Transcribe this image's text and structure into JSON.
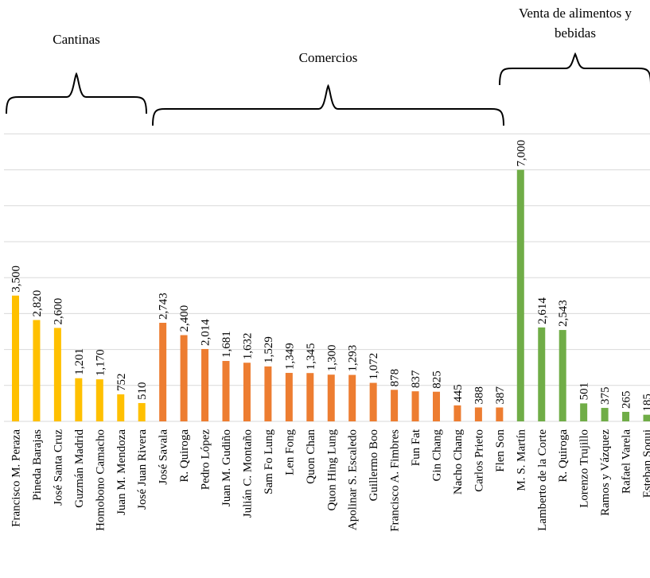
{
  "chart_data": {
    "type": "bar",
    "title": "",
    "xlabel": "",
    "ylabel": "",
    "ylim": [
      0,
      8000
    ],
    "grid": true,
    "colors": {
      "cantinas": "#FFC000",
      "comercios": "#ED7D31",
      "alimentos": "#70AD47",
      "grid": "#d9d9d9"
    },
    "groups": [
      {
        "key": "cantinas",
        "label_lines": [
          "Cantinas"
        ],
        "categories": [
          "Francisco M. Peraza",
          "Pineda Barajas",
          "José Santa Cruz",
          "Guzmán Madrid",
          "Homobono Camacho",
          "Juan M. Mendoza",
          "José Juan Rivera"
        ],
        "values": [
          3500,
          2820,
          2600,
          1201,
          1170,
          752,
          510
        ],
        "value_labels": [
          "3,500",
          "2,820",
          "2,600",
          "1,201",
          "1,170",
          "752",
          "510"
        ]
      },
      {
        "key": "comercios",
        "label_lines": [
          "Comercios"
        ],
        "categories": [
          "José Savala",
          "R. Quiroga",
          "Pedro López",
          "Juan M. Gudiño",
          "Julián C. Montaño",
          "Sam Fo Lung",
          "Len Fong",
          "Quon Chan",
          "Quon Hing Lung",
          "Apolinar S. Escaledo",
          "Guillermo Boo",
          "Francisco A. Fimbres",
          "Fun Fat",
          "Gin Chang",
          "Nacho Chang",
          "Carlos Prieto",
          "Flen Son"
        ],
        "values": [
          2743,
          2400,
          2014,
          1681,
          1632,
          1529,
          1349,
          1345,
          1300,
          1293,
          1072,
          878,
          837,
          825,
          445,
          388,
          387
        ],
        "value_labels": [
          "2,743",
          "2,400",
          "2,014",
          "1,681",
          "1,632",
          "1,529",
          "1,349",
          "1,345",
          "1,300",
          "1,293",
          "1,072",
          "878",
          "837",
          "825",
          "445",
          "388",
          "387"
        ]
      },
      {
        "key": "alimentos",
        "label_lines": [
          "Venta de alimentos y",
          "bebidas"
        ],
        "categories": [
          "M. S. Martín",
          "Lamberto de la Corte",
          "R. Quiroga",
          "Lorenzo Trujillo",
          "Ramos y Vázquez",
          "Rafael Varela",
          "Esteban Soqui"
        ],
        "values": [
          7000,
          2614,
          2543,
          501,
          375,
          265,
          185
        ],
        "value_labels": [
          "7,000",
          "2,614",
          "2,543",
          "501",
          "375",
          "265",
          "185"
        ]
      }
    ]
  }
}
